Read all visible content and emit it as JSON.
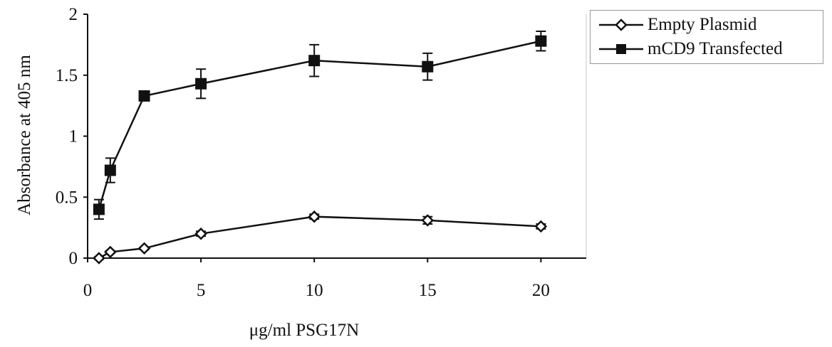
{
  "chart_data": {
    "type": "line",
    "x": [
      0.5,
      1,
      2.5,
      5,
      10,
      15,
      20
    ],
    "series": [
      {
        "name": "Empty Plasmid",
        "values": [
          0.0,
          0.05,
          0.08,
          0.2,
          0.34,
          0.31,
          0.26
        ],
        "errors": [
          0.01,
          0.01,
          0.01,
          0.02,
          0.02,
          0.03,
          0.02
        ],
        "marker": "open-diamond",
        "color": "#111111"
      },
      {
        "name": "mCD9 Transfected",
        "values": [
          0.4,
          0.72,
          1.33,
          1.43,
          1.62,
          1.57,
          1.78
        ],
        "errors": [
          0.08,
          0.1,
          0.02,
          0.12,
          0.13,
          0.11,
          0.08
        ],
        "marker": "filled-square",
        "color": "#111111"
      }
    ],
    "xlabel": "μg/ml PSG17N",
    "ylabel": "Absorbance at 405 nm",
    "xlim": [
      0,
      22
    ],
    "ylim": [
      0,
      2
    ],
    "xticks": [
      0,
      5,
      10,
      15,
      20
    ],
    "yticks": [
      0,
      0.5,
      1,
      1.5,
      2
    ],
    "xtick_labels": [
      "0",
      "5",
      "10",
      "15",
      "20"
    ],
    "ytick_labels": [
      "0",
      "0.5",
      "1",
      "1.5",
      "2"
    ],
    "grid": false,
    "legend_position": "top-right"
  }
}
